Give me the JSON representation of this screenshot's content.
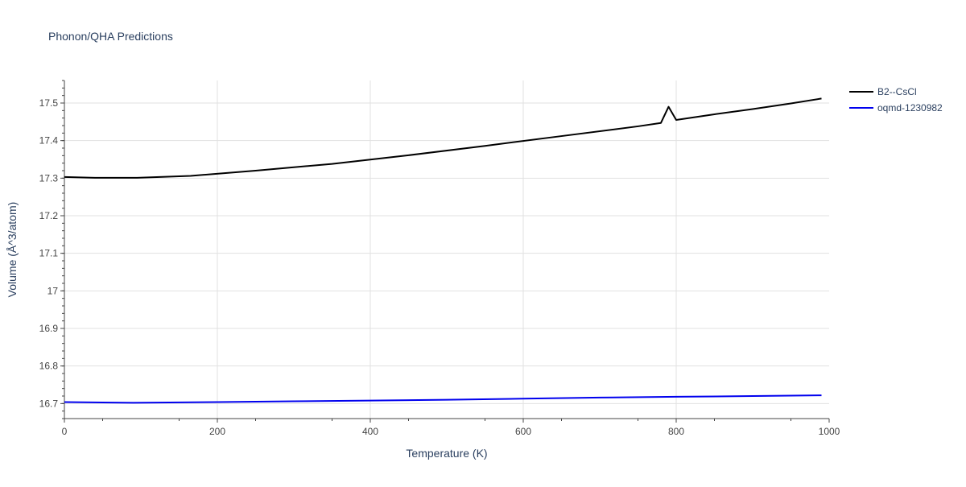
{
  "chart_data": {
    "type": "line",
    "title": "Phonon/QHA Predictions",
    "xlabel": "Temperature (K)",
    "ylabel": "Volume (Å^3/atom)",
    "xlim": [
      0,
      1000
    ],
    "ylim": [
      16.66,
      17.56
    ],
    "xticks": [
      {
        "value": 0,
        "label": "0"
      },
      {
        "value": 200,
        "label": "200"
      },
      {
        "value": 400,
        "label": "400"
      },
      {
        "value": 600,
        "label": "600"
      },
      {
        "value": 800,
        "label": "800"
      },
      {
        "value": 1000,
        "label": "1000"
      }
    ],
    "yticks": [
      {
        "value": 16.7,
        "label": "16.7"
      },
      {
        "value": 16.8,
        "label": "16.8"
      },
      {
        "value": 16.9,
        "label": "16.9"
      },
      {
        "value": 17.0,
        "label": "17"
      },
      {
        "value": 17.1,
        "label": "17.1"
      },
      {
        "value": 17.2,
        "label": "17.2"
      },
      {
        "value": 17.3,
        "label": "17.3"
      },
      {
        "value": 17.4,
        "label": "17.4"
      },
      {
        "value": 17.5,
        "label": "17.5"
      }
    ],
    "grid": true,
    "legend_position": "top-right",
    "series": [
      {
        "name": "B2--CsCl",
        "color": "#000000",
        "x": [
          0,
          40,
          95,
          165,
          250,
          350,
          450,
          550,
          650,
          750,
          780,
          790,
          800,
          850,
          900,
          950,
          990
        ],
        "y": [
          17.303,
          17.301,
          17.301,
          17.306,
          17.32,
          17.338,
          17.361,
          17.386,
          17.412,
          17.438,
          17.447,
          17.49,
          17.455,
          17.47,
          17.484,
          17.499,
          17.512
        ]
      },
      {
        "name": "oqmd-1230982",
        "color": "#0000ee",
        "x": [
          0,
          90,
          200,
          300,
          400,
          500,
          600,
          700,
          800,
          900,
          990
        ],
        "y": [
          16.704,
          16.702,
          16.704,
          16.706,
          16.708,
          16.71,
          16.713,
          16.716,
          16.718,
          16.72,
          16.722
        ]
      }
    ]
  }
}
